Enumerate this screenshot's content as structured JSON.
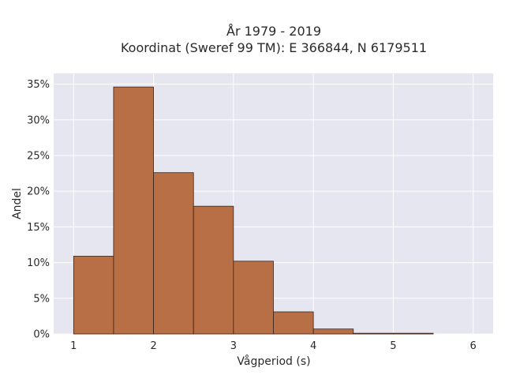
{
  "chart_data": {
    "type": "bar",
    "title_lines": [
      "År 1979 - 2019",
      "Koordinat (Sweref 99 TM): E 366844, N 6179511"
    ],
    "xlabel": "Vågperiod (s)",
    "ylabel": "Andel",
    "xlim": [
      0.75,
      6.25
    ],
    "ylim": [
      0,
      0.365
    ],
    "x_ticks": [
      1,
      2,
      3,
      4,
      5,
      6
    ],
    "y_ticks": [
      0,
      0.05,
      0.1,
      0.15,
      0.2,
      0.25,
      0.3,
      0.35
    ],
    "y_tick_labels": [
      "0%",
      "5%",
      "10%",
      "15%",
      "20%",
      "25%",
      "30%",
      "35%"
    ],
    "bins": [
      {
        "x0": 1.0,
        "x1": 1.5,
        "value": 0.109
      },
      {
        "x0": 1.5,
        "x1": 2.0,
        "value": 0.346
      },
      {
        "x0": 2.0,
        "x1": 2.5,
        "value": 0.226
      },
      {
        "x0": 2.5,
        "x1": 3.0,
        "value": 0.179
      },
      {
        "x0": 3.0,
        "x1": 3.5,
        "value": 0.102
      },
      {
        "x0": 3.5,
        "x1": 4.0,
        "value": 0.031
      },
      {
        "x0": 4.0,
        "x1": 4.5,
        "value": 0.007
      },
      {
        "x0": 4.5,
        "x1": 5.0,
        "value": 0.001
      },
      {
        "x0": 5.0,
        "x1": 5.5,
        "value": 0.001
      }
    ],
    "grid": true,
    "colors": {
      "bar": "#b86f45",
      "bar_edge": "#3a2418",
      "plot_bg": "#e5e6f0",
      "grid": "#ffffff"
    }
  }
}
